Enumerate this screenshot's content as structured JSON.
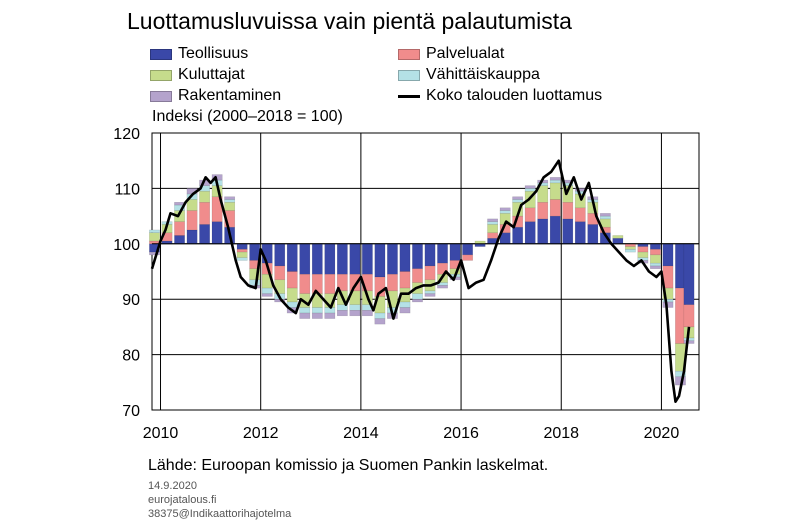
{
  "title": "Luottamusluvuissa vain pientä palautumista",
  "unit_label": "Indeksi (2000–2018 = 100)",
  "source": "Lähde: Euroopan komissio ja Suomen Pankin laskelmat.",
  "footer": {
    "date": "14.9.2020",
    "site": "eurojatalous.fi",
    "id": "38375@Indikaattorihajotelma"
  },
  "legend": [
    {
      "label": "Teollisuus",
      "color": "#3A48A8",
      "kind": "bar"
    },
    {
      "label": "Palvelualat",
      "color": "#F08C8C",
      "kind": "bar"
    },
    {
      "label": "Kuluttajat",
      "color": "#C6DC8C",
      "kind": "bar"
    },
    {
      "label": "Vähittäiskauppa",
      "color": "#B4E1E6",
      "kind": "bar"
    },
    {
      "label": "Rakentaminen",
      "color": "#B4A3CC",
      "kind": "bar"
    },
    {
      "label": "Koko talouden luottamus",
      "color": "#000000",
      "kind": "line"
    }
  ],
  "chart_data": {
    "type": "bar",
    "stacked": true,
    "baseline": 100,
    "ylim": [
      70,
      120
    ],
    "yticks": [
      70,
      80,
      90,
      100,
      110,
      120
    ],
    "xlim": [
      2009.83,
      2020.75
    ],
    "xtick_positions": [
      2010,
      2012,
      2014,
      2016,
      2018,
      2020
    ],
    "xtick_labels": [
      "2010",
      "2012",
      "2014",
      "2016",
      "2018",
      "2020"
    ],
    "grid": true,
    "series_order": [
      "Teollisuus",
      "Palvelualat",
      "Kuluttajat",
      "Vähittäiskauppa",
      "Rakentaminen"
    ],
    "period": "quarterly",
    "x": [
      2009.88,
      2010.13,
      2010.38,
      2010.63,
      2010.88,
      2011.13,
      2011.38,
      2011.63,
      2011.88,
      2012.13,
      2012.38,
      2012.63,
      2012.88,
      2013.13,
      2013.38,
      2013.63,
      2013.88,
      2014.13,
      2014.38,
      2014.63,
      2014.88,
      2015.13,
      2015.38,
      2015.63,
      2015.88,
      2016.13,
      2016.38,
      2016.63,
      2016.88,
      2017.13,
      2017.38,
      2017.63,
      2017.88,
      2018.13,
      2018.38,
      2018.63,
      2018.88,
      2019.13,
      2019.38,
      2019.63,
      2019.88,
      2020.13,
      2020.38,
      2020.55
    ],
    "components": {
      "Teollisuus": [
        -1.5,
        0.5,
        1.5,
        2.5,
        3.5,
        4,
        3,
        -1,
        -3,
        -3.5,
        -4,
        -5,
        -5.5,
        -5.5,
        -5.5,
        -5.5,
        -5.5,
        -5.5,
        -6,
        -5.5,
        -5,
        -4.5,
        -4,
        -3.5,
        -3,
        -2,
        -0.5,
        1,
        2,
        3,
        4,
        4.5,
        5,
        4.5,
        4,
        3.5,
        2,
        1,
        0,
        -0.5,
        -1,
        -4,
        -8,
        -11
      ],
      "Palvelualat": [
        0.5,
        1.5,
        2.5,
        3.5,
        4,
        4.5,
        3,
        -0.5,
        -1.5,
        -2,
        -2.5,
        -3,
        -3.5,
        -3.5,
        -3.5,
        -3,
        -3,
        -3,
        -3.5,
        -3,
        -3,
        -2.5,
        -2.5,
        -2,
        -1.5,
        -1,
        0,
        1,
        1.5,
        2,
        2.5,
        3,
        3,
        3,
        2.5,
        2,
        1,
        0,
        -0.5,
        -1,
        -1,
        -4,
        -10,
        -4
      ],
      "Kuluttajat": [
        1.5,
        1.5,
        2,
        2,
        2,
        2,
        1.5,
        -1,
        -2,
        -2.5,
        -2.5,
        -2.5,
        -2.5,
        -2.5,
        -2.5,
        -2.5,
        -2.5,
        -2.5,
        -3,
        -3,
        -2.5,
        -2,
        -2,
        -1.5,
        -1,
        0,
        0.5,
        1.5,
        2,
        2.5,
        3,
        3,
        3,
        3,
        2.5,
        2,
        1.5,
        0.5,
        -0.5,
        -1,
        -1.5,
        -2,
        -5,
        -2
      ],
      "Vähittäiskauppa": [
        0.5,
        0.5,
        1,
        1,
        1,
        1,
        0.5,
        -0.5,
        -1,
        -1,
        -1,
        -1,
        -1,
        -1,
        -1,
        -1,
        -1,
        -1,
        -1,
        -1,
        -1,
        -1,
        -0.5,
        -0.5,
        -0.5,
        0,
        0,
        0.5,
        0.5,
        0.5,
        0.5,
        0.5,
        0.5,
        0.5,
        0.5,
        0.5,
        0.5,
        0,
        -0.5,
        -0.5,
        -0.5,
        -0.5,
        -1,
        -0.5
      ],
      "Rakentaminen": [
        -0.5,
        0,
        0.5,
        1,
        1,
        1,
        0.5,
        0,
        -0.5,
        -0.5,
        -0.5,
        -1,
        -1,
        -1,
        -1,
        -1,
        -1,
        -1,
        -1,
        -1,
        -1,
        -0.5,
        -0.5,
        -0.5,
        -0.5,
        0,
        0,
        0.5,
        0.5,
        0.5,
        0.5,
        0.5,
        0.5,
        0.5,
        0.5,
        0.5,
        0.5,
        0,
        0,
        -0.5,
        -0.5,
        -1,
        -1.5,
        -0.5
      ]
    },
    "line": {
      "name": "Koko talouden luottamus",
      "x": [
        2009.83,
        2010.0,
        2010.1,
        2010.2,
        2010.35,
        2010.5,
        2010.65,
        2010.8,
        2010.9,
        2011.0,
        2011.1,
        2011.2,
        2011.35,
        2011.5,
        2011.6,
        2011.75,
        2011.9,
        2012.0,
        2012.1,
        2012.25,
        2012.4,
        2012.55,
        2012.7,
        2012.8,
        2012.95,
        2013.1,
        2013.25,
        2013.4,
        2013.55,
        2013.7,
        2013.85,
        2014.0,
        2014.15,
        2014.25,
        2014.35,
        2014.5,
        2014.65,
        2014.8,
        2014.95,
        2015.1,
        2015.25,
        2015.4,
        2015.55,
        2015.7,
        2015.85,
        2016.0,
        2016.15,
        2016.3,
        2016.45,
        2016.6,
        2016.75,
        2016.9,
        2017.05,
        2017.2,
        2017.35,
        2017.5,
        2017.65,
        2017.8,
        2017.95,
        2018.1,
        2018.25,
        2018.4,
        2018.55,
        2018.7,
        2018.85,
        2019.0,
        2019.15,
        2019.3,
        2019.45,
        2019.6,
        2019.75,
        2019.9,
        2020.0,
        2020.1,
        2020.2,
        2020.28,
        2020.35,
        2020.45,
        2020.55
      ],
      "y": [
        95.5,
        100.5,
        102.5,
        105.5,
        105,
        107.5,
        109,
        110,
        112,
        111,
        112,
        108,
        103,
        97,
        94,
        92.5,
        92,
        99,
        97,
        92.5,
        90,
        88.5,
        87.5,
        90,
        89,
        91.5,
        90,
        88.5,
        92,
        89,
        92,
        94,
        90,
        88,
        91,
        92,
        86.5,
        91,
        91,
        92,
        92.5,
        92.5,
        93,
        95,
        93.5,
        97,
        92,
        93,
        93.5,
        97,
        101,
        104,
        103,
        107,
        108,
        109.5,
        112,
        113,
        115,
        109,
        112,
        108,
        111,
        105,
        102,
        100,
        98.5,
        97,
        96,
        97,
        95,
        94,
        95,
        89,
        77,
        71.5,
        72.5,
        77,
        85
      ]
    }
  }
}
